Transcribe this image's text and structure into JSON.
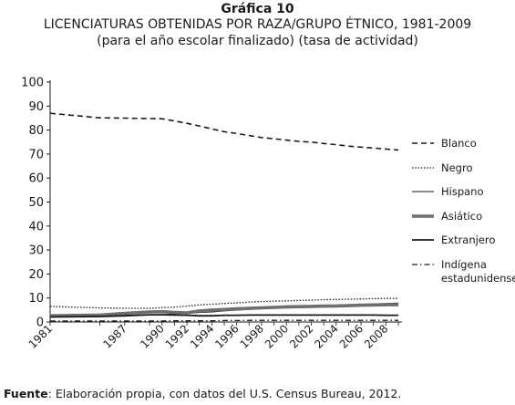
{
  "header": {
    "kicker": "Gráfica 10",
    "title": "LICENCIATURAS OBTENIDAS POR RAZA/GRUPO ÉTNICO, 1981-2009",
    "subtitle": "(para el año escolar finalizado) (tasa de actividad)"
  },
  "source": {
    "label": "Fuente",
    "text": ": Elaboración propia, con datos del U.S. Census Bureau, 2012."
  },
  "chart_data": {
    "type": "line",
    "x": [
      1981,
      1985,
      1987,
      1989,
      1990,
      1991,
      1992,
      1993,
      1994,
      1995,
      1996,
      1997,
      1998,
      1999,
      2000,
      2001,
      2002,
      2003,
      2004,
      2005,
      2006,
      2007,
      2008,
      2009
    ],
    "tick_labels": [
      "1981",
      "1987",
      "1990",
      "1992",
      "1994",
      "1996",
      "1998",
      "2000",
      "2002",
      "2004",
      "2006",
      "2008"
    ],
    "ylim": [
      0,
      100
    ],
    "yticks": [
      0,
      10,
      20,
      30,
      40,
      50,
      60,
      70,
      80,
      90,
      100
    ],
    "legend_position": "right",
    "series": [
      {
        "name": "Blanco",
        "style": "dashed",
        "color": "#1a1a1a",
        "values": [
          87,
          85.1,
          85,
          84.8,
          84.7,
          83.8,
          82.8,
          81.7,
          80.5,
          79.3,
          78.6,
          77.7,
          76.9,
          76.4,
          75.8,
          75.3,
          75.0,
          74.4,
          73.9,
          73.3,
          72.9,
          72.5,
          72.1,
          71.7
        ]
      },
      {
        "name": "Negro",
        "style": "dotted",
        "color": "#1a1a1a",
        "values": [
          6.5,
          5.9,
          5.7,
          5.7,
          6.0,
          6.2,
          6.6,
          7.1,
          7.4,
          7.7,
          8.0,
          8.3,
          8.5,
          8.7,
          8.8,
          9.0,
          9.1,
          9.3,
          9.4,
          9.5,
          9.6,
          9.7,
          9.8,
          9.8
        ]
      },
      {
        "name": "Hispano",
        "style": "thin",
        "color": "#1a1a1a",
        "values": [
          2.3,
          2.6,
          2.8,
          3.0,
          3.1,
          3.3,
          3.6,
          3.9,
          4.2,
          4.6,
          4.9,
          5.2,
          5.5,
          5.8,
          6.1,
          6.3,
          6.5,
          6.7,
          6.9,
          7.1,
          7.3,
          7.5,
          7.7,
          7.9
        ]
      },
      {
        "name": "Asiático",
        "style": "thick",
        "color": "#6e6e6e",
        "values": [
          2.6,
          2.9,
          3.6,
          4.2,
          4.3,
          4.0,
          3.8,
          4.6,
          5.0,
          5.2,
          5.5,
          5.7,
          5.9,
          6.1,
          6.3,
          6.4,
          6.5,
          6.6,
          6.7,
          6.8,
          7.0,
          7.1,
          7.2,
          7.2
        ]
      },
      {
        "name": "Extranjero",
        "style": "solid",
        "color": "#1a1a1a",
        "values": [
          2.1,
          2.3,
          2.6,
          3.0,
          3.0,
          2.9,
          2.8,
          2.6,
          2.6,
          2.8,
          2.8,
          2.9,
          2.9,
          2.9,
          2.9,
          2.9,
          2.9,
          2.9,
          2.9,
          2.9,
          2.9,
          2.9,
          2.8,
          2.8
        ]
      },
      {
        "name": "Indígena estadunidense",
        "style": "dashdot",
        "color": "#1a1a1a",
        "values": [
          0.4,
          0.4,
          0.4,
          0.4,
          0.4,
          0.5,
          0.5,
          0.5,
          0.5,
          0.6,
          0.6,
          0.7,
          0.7,
          0.7,
          0.7,
          0.7,
          0.7,
          0.7,
          0.7,
          0.7,
          0.7,
          0.7,
          0.7,
          0.7
        ]
      }
    ],
    "legend": [
      {
        "label_lines": [
          "Blanco"
        ]
      },
      {
        "label_lines": [
          "Negro"
        ]
      },
      {
        "label_lines": [
          "Hispano"
        ]
      },
      {
        "label_lines": [
          "Asiático"
        ]
      },
      {
        "label_lines": [
          "Extranjero"
        ]
      },
      {
        "label_lines": [
          "Indígena",
          "estadunidense"
        ]
      }
    ]
  }
}
